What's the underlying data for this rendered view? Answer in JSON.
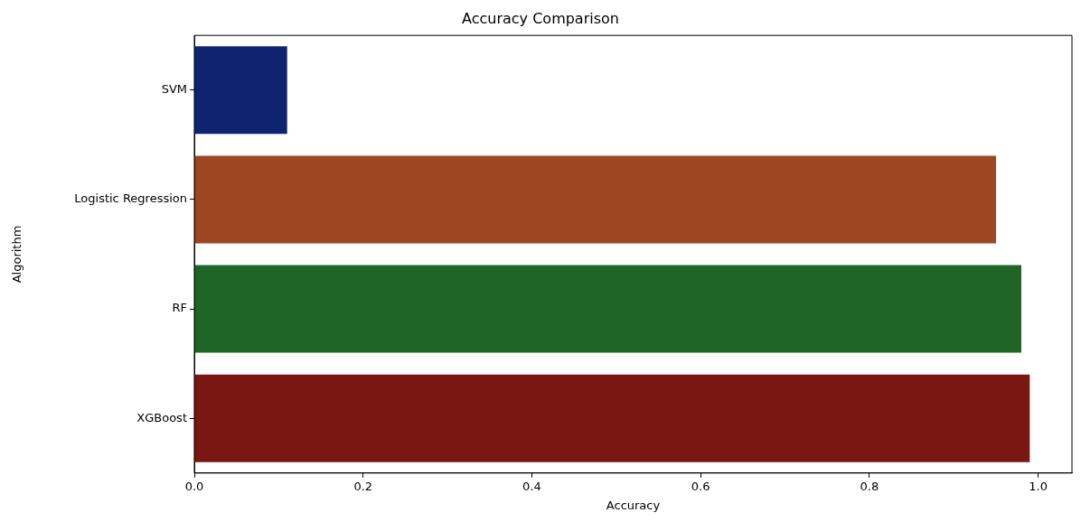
{
  "chart_data": {
    "type": "bar",
    "orientation": "horizontal",
    "title": "Accuracy Comparison",
    "xlabel": "Accuracy",
    "ylabel": "Algorithm",
    "categories": [
      "SVM",
      "Logistic Regression",
      "RF",
      "XGBoost"
    ],
    "values": [
      0.11,
      0.95,
      0.98,
      0.99
    ],
    "colors": [
      "#0e2470",
      "#9c4722",
      "#1f6626",
      "#7a1712"
    ],
    "xlim": [
      0,
      1.04
    ],
    "xticks": [
      {
        "value": 0,
        "label": "0.0"
      },
      0.2,
      0.4,
      0.6,
      0.8,
      {
        "value": 1,
        "label": "1.0"
      }
    ],
    "grid": false,
    "legend": false
  }
}
